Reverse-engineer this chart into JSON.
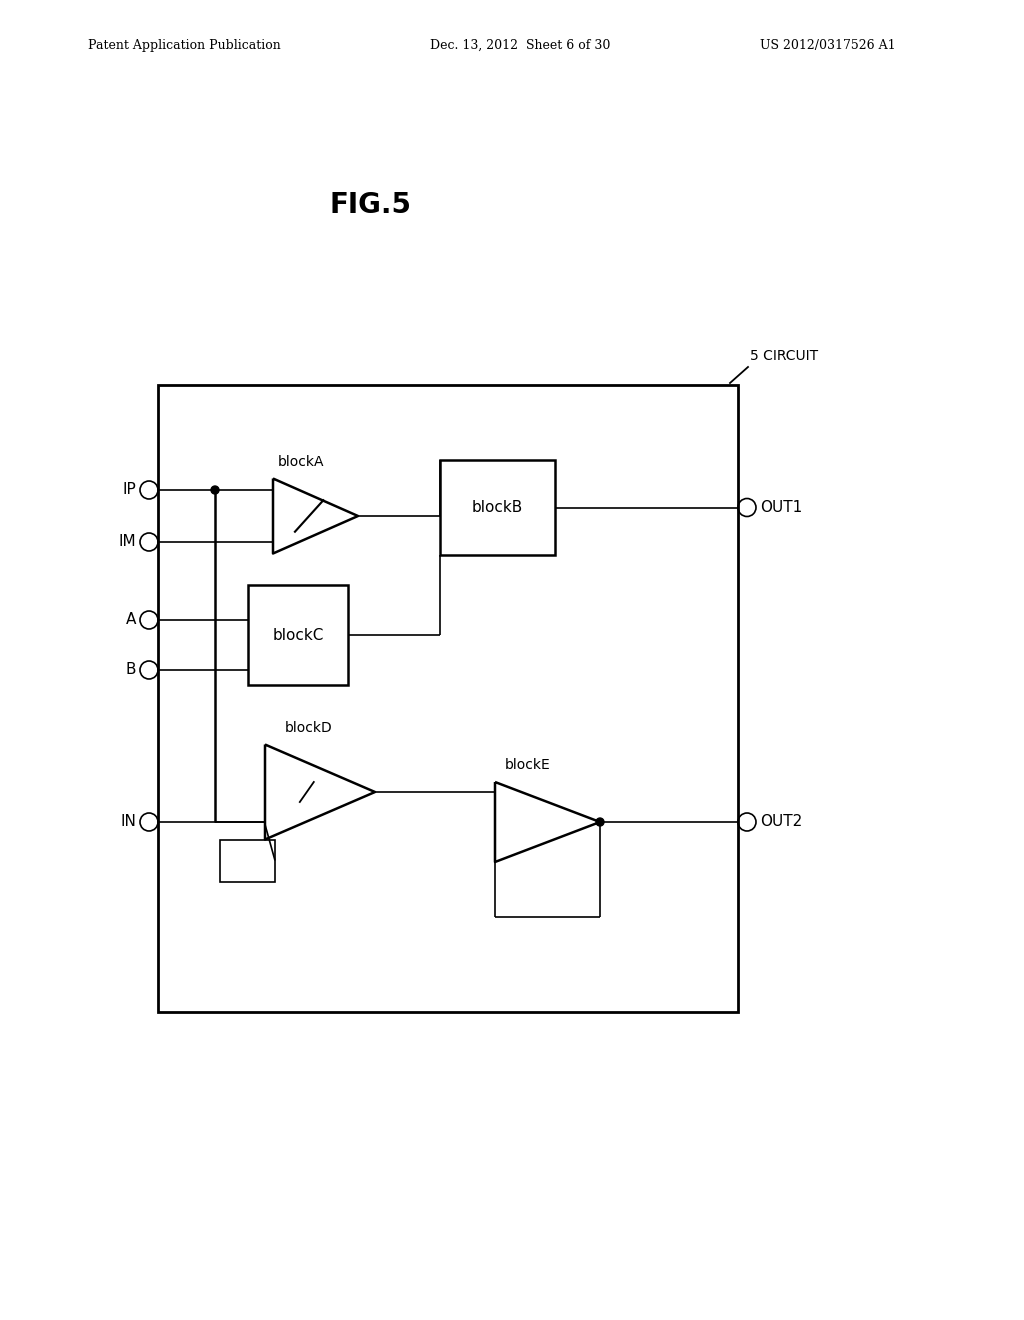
{
  "bg_color": "#ffffff",
  "header_left": "Patent Application Publication",
  "header_mid": "Dec. 13, 2012  Sheet 6 of 30",
  "header_right": "US 2012/0317526 A1",
  "fig_label": "FIG.5",
  "circuit_label": "5 CIRCUIT",
  "lw": 1.8,
  "lw_thin": 1.2,
  "circle_r": 9
}
